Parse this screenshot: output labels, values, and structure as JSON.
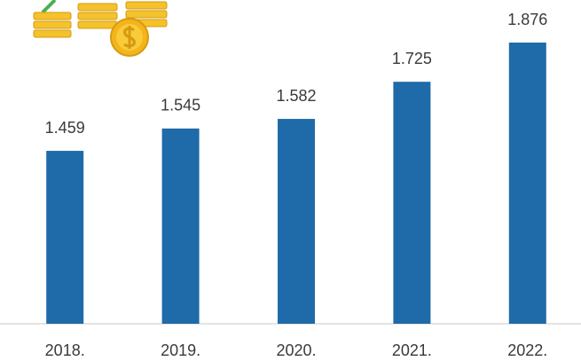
{
  "chart_data": {
    "type": "bar",
    "categories": [
      "2018.",
      "2019.",
      "2020.",
      "2021.",
      "2022."
    ],
    "values": [
      1.459,
      1.545,
      1.582,
      1.725,
      1.876
    ],
    "color": "#1f6aa8",
    "ylim": [
      0.793,
      2.04
    ]
  }
}
